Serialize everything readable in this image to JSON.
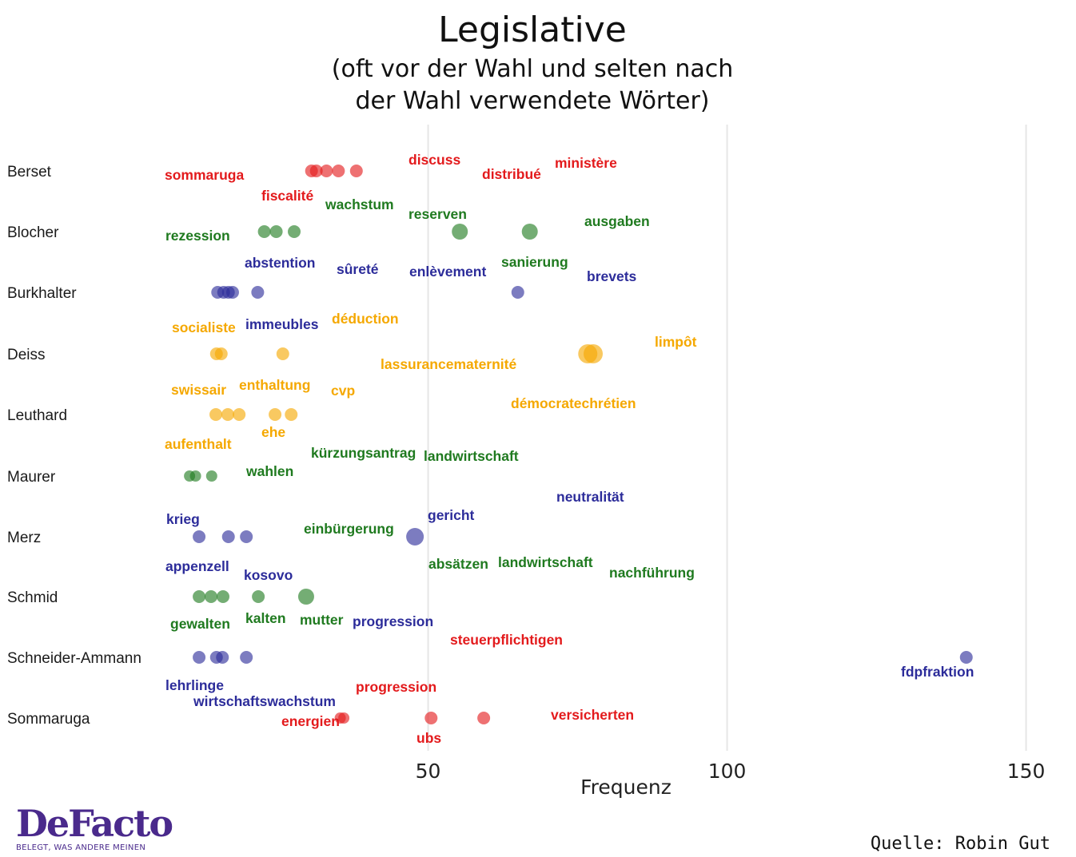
{
  "colors": {
    "red": "#e31a1c",
    "green": "#1f7a1f",
    "blue": "#2c2c9a",
    "orange": "#f5a800",
    "grid": "#e6e6e6"
  },
  "logo": {
    "name": "DeFacto",
    "tagline": "BELEGT, WAS ANDERE MEINEN"
  },
  "source": "Quelle: Robin Gut",
  "chart_data": {
    "type": "scatter",
    "title": "Legislative",
    "subtitle": [
      "(oft vor der Wahl und selten nach",
      "der Wahl verwendete Wörter)"
    ],
    "xlabel": "Frequenz",
    "ylabel": "",
    "xlim": [
      3,
      153
    ],
    "xticks": [
      50,
      100,
      150
    ],
    "grid": true,
    "categories": [
      "Berset",
      "Blocher",
      "Burkhalter",
      "Deiss",
      "Leuthard",
      "Maurer",
      "Merz",
      "Schmid",
      "Schneider-Ammann",
      "Sommaruga"
    ],
    "series": [
      {
        "category": "Berset",
        "color": "red",
        "points": [
          {
            "x": 30.5,
            "size": 8
          },
          {
            "x": 31.3,
            "size": 8
          },
          {
            "x": 33,
            "size": 8
          },
          {
            "x": 35,
            "size": 8
          },
          {
            "x": 38,
            "size": 8
          }
        ]
      },
      {
        "category": "Blocher",
        "color": "green",
        "points": [
          {
            "x": 22.6,
            "size": 8
          },
          {
            "x": 24.6,
            "size": 8
          },
          {
            "x": 27.6,
            "size": 8
          },
          {
            "x": 55.3,
            "size": 10
          },
          {
            "x": 67,
            "size": 10
          }
        ]
      },
      {
        "category": "Burkhalter",
        "color": "blue",
        "points": [
          {
            "x": 14.8,
            "size": 8
          },
          {
            "x": 15.8,
            "size": 8
          },
          {
            "x": 16.6,
            "size": 8
          },
          {
            "x": 17.3,
            "size": 8
          },
          {
            "x": 21.5,
            "size": 8
          },
          {
            "x": 65,
            "size": 8
          }
        ]
      },
      {
        "category": "Deiss",
        "color": "orange",
        "points": [
          {
            "x": 14.6,
            "size": 8
          },
          {
            "x": 15.4,
            "size": 8
          },
          {
            "x": 25.7,
            "size": 8
          },
          {
            "x": 76.7,
            "size": 12
          },
          {
            "x": 77.6,
            "size": 12
          }
        ]
      },
      {
        "category": "Leuthard",
        "color": "orange",
        "points": [
          {
            "x": 14.5,
            "size": 8
          },
          {
            "x": 16.5,
            "size": 8
          },
          {
            "x": 18.4,
            "size": 8
          },
          {
            "x": 24.4,
            "size": 8
          },
          {
            "x": 27.1,
            "size": 8
          }
        ]
      },
      {
        "category": "Maurer",
        "color": "green",
        "points": [
          {
            "x": 10.1,
            "size": 7
          },
          {
            "x": 11.1,
            "size": 7
          },
          {
            "x": 13.8,
            "size": 7
          }
        ]
      },
      {
        "category": "Merz",
        "color": "blue",
        "points": [
          {
            "x": 11.7,
            "size": 8
          },
          {
            "x": 16.6,
            "size": 8
          },
          {
            "x": 19.6,
            "size": 8
          },
          {
            "x": 47.8,
            "size": 11
          }
        ]
      },
      {
        "category": "Schmid",
        "color": "green",
        "points": [
          {
            "x": 11.7,
            "size": 8
          },
          {
            "x": 13.7,
            "size": 8
          },
          {
            "x": 15.7,
            "size": 8
          },
          {
            "x": 21.6,
            "size": 8
          },
          {
            "x": 29.6,
            "size": 10
          }
        ]
      },
      {
        "category": "Schneider-Ammann",
        "color": "blue",
        "points": [
          {
            "x": 11.7,
            "size": 8
          },
          {
            "x": 14.6,
            "size": 8
          },
          {
            "x": 15.6,
            "size": 8
          },
          {
            "x": 19.6,
            "size": 8
          },
          {
            "x": 140,
            "size": 8
          }
        ]
      },
      {
        "category": "Sommaruga",
        "color": "red",
        "points": [
          {
            "x": 35.3,
            "size": 7
          },
          {
            "x": 35.9,
            "size": 7
          },
          {
            "x": 50.5,
            "size": 8
          },
          {
            "x": 59.3,
            "size": 8
          }
        ]
      }
    ],
    "annotations": [
      {
        "text": "sommaruga",
        "color": "red"
      },
      {
        "text": "discuss",
        "color": "red"
      },
      {
        "text": "distribué",
        "color": "red"
      },
      {
        "text": "ministère",
        "color": "red"
      },
      {
        "text": "fiscalité",
        "color": "red"
      },
      {
        "text": "wachstum",
        "color": "green"
      },
      {
        "text": "reserven",
        "color": "green"
      },
      {
        "text": "ausgaben",
        "color": "green"
      },
      {
        "text": "rezession",
        "color": "green"
      },
      {
        "text": "abstention",
        "color": "blue"
      },
      {
        "text": "sûreté",
        "color": "blue"
      },
      {
        "text": "enlèvement",
        "color": "blue"
      },
      {
        "text": "sanierung",
        "color": "green"
      },
      {
        "text": "brevets",
        "color": "blue"
      },
      {
        "text": "socialiste",
        "color": "orange"
      },
      {
        "text": "immeubles",
        "color": "blue"
      },
      {
        "text": "déduction",
        "color": "orange"
      },
      {
        "text": "limpôt",
        "color": "orange"
      },
      {
        "text": "lassurancematernité",
        "color": "orange"
      },
      {
        "text": "swissair",
        "color": "orange"
      },
      {
        "text": "enthaltung",
        "color": "orange"
      },
      {
        "text": "cvp",
        "color": "orange"
      },
      {
        "text": "démocratechrétien",
        "color": "orange"
      },
      {
        "text": "aufenthalt",
        "color": "orange"
      },
      {
        "text": "ehe",
        "color": "orange"
      },
      {
        "text": "kürzungsantrag",
        "color": "green"
      },
      {
        "text": "landwirtschaft",
        "color": "green"
      },
      {
        "text": "wahlen",
        "color": "green"
      },
      {
        "text": "neutralität",
        "color": "blue"
      },
      {
        "text": "krieg",
        "color": "blue"
      },
      {
        "text": "einbürgerung",
        "color": "green"
      },
      {
        "text": "gericht",
        "color": "blue"
      },
      {
        "text": "appenzell",
        "color": "blue"
      },
      {
        "text": "kosovo",
        "color": "blue"
      },
      {
        "text": "absätzen",
        "color": "green"
      },
      {
        "text": "landwirtschaft",
        "color": "green"
      },
      {
        "text": "nachführung",
        "color": "green"
      },
      {
        "text": "gewalten",
        "color": "green"
      },
      {
        "text": "kalten",
        "color": "green"
      },
      {
        "text": "mutter",
        "color": "green"
      },
      {
        "text": "progression",
        "color": "blue"
      },
      {
        "text": "steuerpflichtigen",
        "color": "red"
      },
      {
        "text": "fdpfraktion",
        "color": "blue"
      },
      {
        "text": "lehrlinge",
        "color": "blue"
      },
      {
        "text": "progression",
        "color": "red"
      },
      {
        "text": "wirtschaftswachstum",
        "color": "blue"
      },
      {
        "text": "energien",
        "color": "red"
      },
      {
        "text": "versicherten",
        "color": "red"
      },
      {
        "text": "ubs",
        "color": "red"
      }
    ]
  }
}
